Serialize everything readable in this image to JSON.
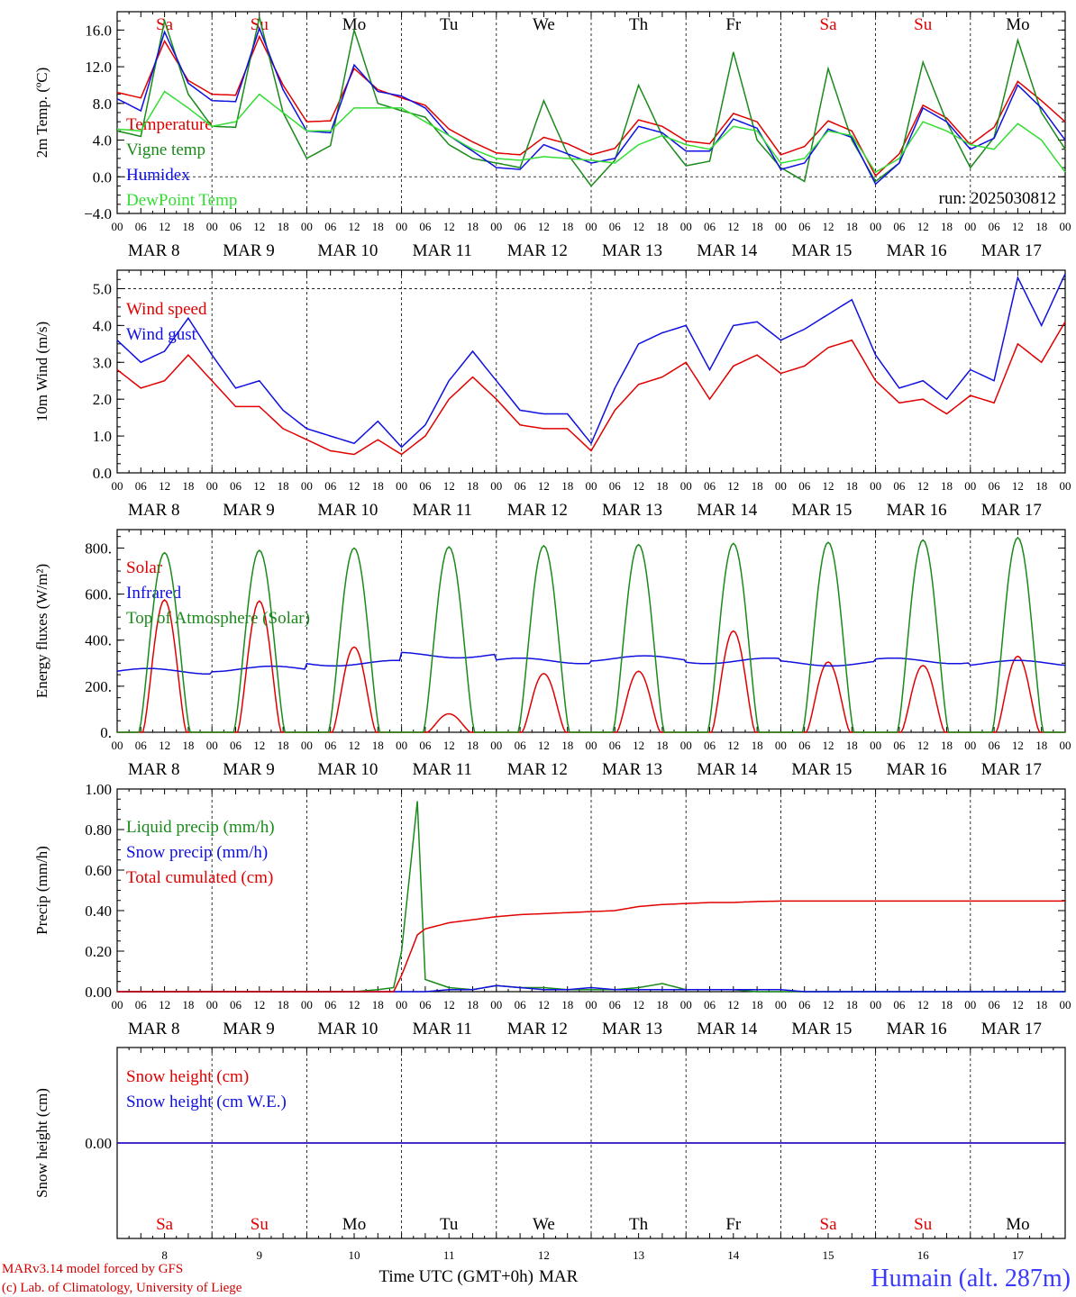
{
  "colors": {
    "red": "#e00000",
    "green": "#1a8a1a",
    "blue": "#1010e0",
    "lightgreen": "#33dd33",
    "weekend": "#e00000"
  },
  "time_axis": {
    "hours": [
      "00",
      "06",
      "12",
      "18"
    ],
    "date_labels": [
      "MAR  8",
      "MAR  9",
      "MAR 10",
      "MAR 11",
      "MAR 12",
      "MAR 13",
      "MAR 14",
      "MAR 15",
      "MAR 16",
      "MAR 17"
    ],
    "weekdays": [
      "Sa",
      "Su",
      "Mo",
      "Tu",
      "We",
      "Th",
      "Fr",
      "Sa",
      "Su",
      "Mo"
    ],
    "weekend_index": [
      0,
      1,
      7,
      8
    ],
    "day_numbers": [
      "8",
      "9",
      "10",
      "11",
      "12",
      "13",
      "14",
      "15",
      "16",
      "17"
    ],
    "xlabel": "Time UTC (GMT+0h)",
    "month": "MAR"
  },
  "footer": {
    "model": "MARv3.14 model forced by GFS",
    "lab": "(c) Lab. of Climatology, University of Liege",
    "station": "Humain (alt. 287m)"
  },
  "chart_data": [
    {
      "type": "line",
      "ylabel": "2m Temp. (ºC)",
      "ylim": [
        -4,
        18
      ],
      "yticks": [
        "−4.0",
        "0.0",
        "4.0",
        "8.0",
        "12.0",
        "16.0"
      ],
      "yticks_values": [
        -4,
        0,
        4,
        8,
        12,
        16
      ],
      "run_label": "run: 2025030812",
      "x": [
        0,
        6,
        12,
        18,
        24,
        30,
        36,
        42,
        48,
        54,
        60,
        66,
        72,
        78,
        84,
        90,
        96,
        102,
        108,
        114,
        120,
        126,
        132,
        138,
        144,
        150,
        156,
        162,
        168,
        174,
        180,
        186,
        192,
        198,
        204,
        210,
        216,
        222,
        228,
        234,
        240
      ],
      "series": [
        {
          "name": "Temperature",
          "color": "red",
          "values": [
            9.2,
            8.6,
            14.8,
            10.5,
            9.0,
            8.9,
            15.3,
            10.0,
            6.0,
            6.1,
            11.8,
            9.5,
            8.6,
            7.8,
            5.2,
            3.8,
            2.6,
            2.4,
            4.3,
            3.6,
            2.4,
            3.1,
            6.2,
            5.5,
            3.9,
            3.6,
            6.9,
            6.0,
            2.4,
            3.3,
            6.1,
            5.0,
            0.1,
            2.5,
            7.8,
            6.4,
            3.5,
            5.4,
            10.4,
            8.3,
            6.0
          ]
        },
        {
          "name": "Vigne temp",
          "color": "green",
          "values": [
            5.0,
            4.4,
            17.0,
            9.0,
            5.5,
            5.4,
            17.4,
            7.0,
            2.0,
            3.4,
            16.0,
            8.0,
            7.2,
            6.5,
            3.5,
            2.0,
            1.5,
            1.0,
            8.3,
            2.5,
            -1.0,
            1.8,
            10.0,
            4.5,
            1.2,
            1.7,
            13.6,
            4.0,
            1.0,
            -0.5,
            11.8,
            4.0,
            -0.5,
            1.5,
            12.5,
            6.0,
            1.0,
            4.3,
            14.9,
            7.0,
            3.0
          ]
        },
        {
          "name": "Humidex",
          "color": "blue",
          "values": [
            8.5,
            7.2,
            15.8,
            10.2,
            8.3,
            8.2,
            16.2,
            9.5,
            5.0,
            4.8,
            12.2,
            9.3,
            8.8,
            7.5,
            4.5,
            2.8,
            1.0,
            0.8,
            3.5,
            2.5,
            1.5,
            2.0,
            5.5,
            4.8,
            2.8,
            2.8,
            6.3,
            5.3,
            0.8,
            1.5,
            5.2,
            4.3,
            -0.8,
            1.5,
            7.5,
            6.0,
            3.0,
            4.2,
            10.0,
            7.5,
            4.0
          ]
        },
        {
          "name": "DewPoint Temp",
          "color": "lightgreen",
          "values": [
            5.2,
            5.0,
            9.3,
            7.5,
            5.5,
            6.0,
            9.0,
            7.0,
            5.0,
            5.0,
            7.5,
            7.5,
            7.5,
            6.0,
            4.5,
            3.0,
            2.0,
            1.8,
            2.2,
            2.0,
            1.8,
            1.5,
            3.5,
            4.5,
            3.5,
            3.0,
            5.5,
            5.0,
            1.5,
            2.0,
            5.0,
            4.5,
            0.5,
            2.0,
            6.0,
            5.0,
            3.5,
            3.0,
            5.8,
            4.0,
            0.5
          ]
        }
      ]
    },
    {
      "type": "line",
      "ylabel": "10m Wind (m/s)",
      "ylim": [
        0,
        5.5
      ],
      "yticks": [
        "0.0",
        "1.0",
        "2.0",
        "3.0",
        "4.0",
        "5.0"
      ],
      "yticks_values": [
        0,
        1,
        2,
        3,
        4,
        5
      ],
      "x": [
        0,
        6,
        12,
        18,
        24,
        30,
        36,
        42,
        48,
        54,
        60,
        66,
        72,
        78,
        84,
        90,
        96,
        102,
        108,
        114,
        120,
        126,
        132,
        138,
        144,
        150,
        156,
        162,
        168,
        174,
        180,
        186,
        192,
        198,
        204,
        210,
        216,
        222,
        228,
        234,
        240
      ],
      "series": [
        {
          "name": "Wind speed",
          "color": "red",
          "values": [
            2.8,
            2.3,
            2.5,
            3.2,
            2.5,
            1.8,
            1.8,
            1.2,
            0.9,
            0.6,
            0.5,
            0.9,
            0.5,
            1.0,
            2.0,
            2.6,
            2.0,
            1.3,
            1.2,
            1.2,
            0.6,
            1.7,
            2.4,
            2.6,
            3.0,
            2.0,
            2.9,
            3.2,
            2.7,
            2.9,
            3.4,
            3.6,
            2.5,
            1.9,
            2.0,
            1.6,
            2.1,
            1.9,
            3.5,
            3.0,
            4.1
          ]
        },
        {
          "name": "Wind gust",
          "color": "blue",
          "values": [
            3.6,
            3.0,
            3.3,
            4.2,
            3.2,
            2.3,
            2.5,
            1.7,
            1.2,
            1.0,
            0.8,
            1.4,
            0.7,
            1.3,
            2.5,
            3.3,
            2.5,
            1.7,
            1.6,
            1.6,
            0.8,
            2.3,
            3.5,
            3.8,
            4.0,
            2.8,
            4.0,
            4.1,
            3.6,
            3.9,
            4.3,
            4.7,
            3.2,
            2.3,
            2.5,
            2.0,
            2.8,
            2.5,
            5.3,
            4.0,
            5.4
          ]
        }
      ]
    },
    {
      "type": "line",
      "ylabel": "Energy fluxes (W/m²)",
      "ylim": [
        0,
        880
      ],
      "yticks": [
        "0.",
        "200.",
        "400.",
        "600.",
        "800."
      ],
      "yticks_values": [
        0,
        200,
        400,
        600,
        800
      ],
      "infrared_level": 265,
      "series": [
        {
          "name": "Solar",
          "color": "red",
          "daily_peak": [
            575,
            570,
            370,
            80,
            255,
            265,
            440,
            305,
            290,
            330
          ]
        },
        {
          "name": "Infrared",
          "color": "blue",
          "daily_level": [
            265,
            275,
            300,
            335,
            310,
            320,
            310,
            300,
            310,
            300
          ]
        },
        {
          "name": "Top of Atmosphere (Solar)",
          "color": "green",
          "daily_peak": [
            780,
            790,
            800,
            805,
            810,
            815,
            820,
            825,
            835,
            845
          ]
        }
      ]
    },
    {
      "type": "line",
      "ylabel": "Precip (mm/h)",
      "ylim": [
        0,
        1.0
      ],
      "yticks": [
        "0.00",
        "0.20",
        "0.40",
        "0.60",
        "0.80",
        "1.00"
      ],
      "yticks_values": [
        0,
        0.2,
        0.4,
        0.6,
        0.8,
        1.0
      ],
      "x": [
        0,
        60,
        66,
        70,
        72,
        76,
        78,
        84,
        90,
        96,
        102,
        108,
        114,
        120,
        126,
        132,
        138,
        144,
        150,
        156,
        162,
        168,
        174,
        180,
        186,
        192,
        198,
        204,
        210,
        216,
        222,
        228,
        234,
        240
      ],
      "series": [
        {
          "name": "Liquid precip (mm/h)",
          "color": "green",
          "values": [
            0,
            0,
            0.01,
            0.02,
            0.2,
            0.94,
            0.06,
            0.02,
            0.01,
            0.03,
            0.02,
            0.02,
            0.01,
            0.01,
            0.01,
            0.02,
            0.04,
            0.01,
            0.01,
            0.01,
            0.0,
            0.0,
            0.0,
            0.0,
            0.0,
            0.0,
            0.0,
            0.0,
            0.0,
            0.0,
            0.0,
            0.0,
            0.0,
            0.0
          ]
        },
        {
          "name": "Snow precip (mm/h)",
          "color": "blue",
          "values": [
            0,
            0,
            0,
            0,
            0,
            0,
            0,
            0.01,
            0.01,
            0.03,
            0.02,
            0.01,
            0.01,
            0.02,
            0.01,
            0.01,
            0.01,
            0.01,
            0.01,
            0.01,
            0.01,
            0.01,
            0.0,
            0.0,
            0.0,
            0.0,
            0.0,
            0.0,
            0.0,
            0.0,
            0.0,
            0.0,
            0.0,
            0.0
          ]
        },
        {
          "name": "Total cumulated (cm)",
          "color": "red",
          "values": [
            0,
            0,
            0,
            0,
            0.08,
            0.28,
            0.31,
            0.34,
            0.355,
            0.37,
            0.38,
            0.385,
            0.39,
            0.395,
            0.4,
            0.42,
            0.43,
            0.435,
            0.44,
            0.44,
            0.445,
            0.447,
            0.447,
            0.447,
            0.447,
            0.447,
            0.447,
            0.447,
            0.447,
            0.447,
            0.447,
            0.447,
            0.447,
            0.447
          ]
        }
      ]
    },
    {
      "type": "line",
      "ylabel": "Snow height (cm)",
      "ylim": [
        -1,
        1
      ],
      "yticks": [
        "0.00"
      ],
      "yticks_values": [
        0
      ],
      "x": [
        0,
        240
      ],
      "series": [
        {
          "name": "Snow height (cm)",
          "color": "red",
          "values": [
            0,
            0
          ]
        },
        {
          "name": "Snow height (cm W.E.)",
          "color": "blue",
          "values": [
            0,
            0
          ]
        }
      ]
    }
  ]
}
